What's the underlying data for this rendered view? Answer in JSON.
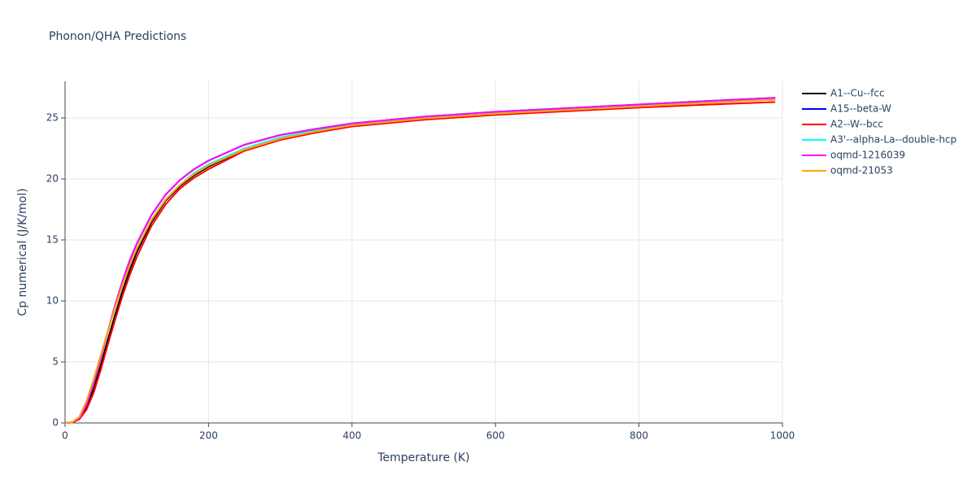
{
  "chart_data": {
    "type": "line",
    "title": "Phonon/QHA Predictions",
    "x_label": "Temperature (K)",
    "y_label": "Cp numerical (J/K/mol)",
    "x": [
      0,
      10,
      20,
      30,
      40,
      50,
      60,
      70,
      80,
      90,
      100,
      120,
      140,
      160,
      180,
      200,
      250,
      300,
      350,
      400,
      500,
      600,
      700,
      800,
      900,
      990
    ],
    "series": [
      {
        "name": "A1--Cu--fcc",
        "color": "#000000",
        "values": [
          0,
          0.04,
          0.35,
          1.3,
          2.8,
          4.8,
          6.9,
          8.9,
          10.8,
          12.5,
          14.0,
          16.4,
          18.2,
          19.4,
          20.3,
          21.0,
          22.4,
          23.3,
          23.9,
          24.4,
          25.0,
          25.4,
          25.7,
          26.0,
          26.3,
          26.5
        ]
      },
      {
        "name": "A15--beta-W",
        "color": "#0000ff",
        "values": [
          0,
          0.05,
          0.4,
          1.5,
          3.3,
          5.4,
          7.6,
          9.7,
          11.6,
          13.3,
          14.7,
          17.0,
          18.7,
          19.9,
          20.8,
          21.5,
          22.8,
          23.6,
          24.1,
          24.55,
          25.1,
          25.5,
          25.8,
          26.1,
          26.4,
          26.65
        ]
      },
      {
        "name": "A2--W--bcc",
        "color": "#ff0000",
        "values": [
          0,
          0.03,
          0.3,
          1.1,
          2.5,
          4.4,
          6.5,
          8.5,
          10.4,
          12.1,
          13.6,
          16.1,
          17.9,
          19.2,
          20.1,
          20.8,
          22.3,
          23.2,
          23.8,
          24.3,
          24.85,
          25.25,
          25.55,
          25.85,
          26.1,
          26.3
        ]
      },
      {
        "name": "A3'--alpha-La--double-hcp",
        "color": "#00ffff",
        "values": [
          0,
          0.06,
          0.5,
          1.8,
          3.6,
          5.6,
          7.6,
          9.5,
          11.3,
          12.9,
          14.3,
          16.6,
          18.3,
          19.5,
          20.5,
          21.2,
          22.5,
          23.4,
          24.0,
          24.5,
          25.0,
          25.4,
          25.7,
          26.0,
          26.3,
          26.55
        ]
      },
      {
        "name": "oqmd-1216039",
        "color": "#ff00ff",
        "values": [
          0,
          0.05,
          0.4,
          1.5,
          3.3,
          5.4,
          7.6,
          9.7,
          11.6,
          13.3,
          14.7,
          17.0,
          18.7,
          19.9,
          20.8,
          21.5,
          22.8,
          23.6,
          24.1,
          24.55,
          25.1,
          25.5,
          25.8,
          26.1,
          26.4,
          26.65
        ]
      },
      {
        "name": "oqmd-21053",
        "color": "#ffa500",
        "values": [
          0,
          0.06,
          0.5,
          1.8,
          3.6,
          5.6,
          7.6,
          9.5,
          11.3,
          12.9,
          14.3,
          16.6,
          18.3,
          19.5,
          20.4,
          21.1,
          22.4,
          23.3,
          23.9,
          24.4,
          24.95,
          25.35,
          25.65,
          25.95,
          26.25,
          26.5
        ]
      }
    ],
    "xlim": [
      0,
      1000
    ],
    "ylim": [
      0,
      28
    ],
    "xticks": [
      0,
      200,
      400,
      600,
      800,
      1000
    ],
    "yticks": [
      0,
      5,
      10,
      15,
      20,
      25
    ],
    "grid": true,
    "legend": "right"
  }
}
